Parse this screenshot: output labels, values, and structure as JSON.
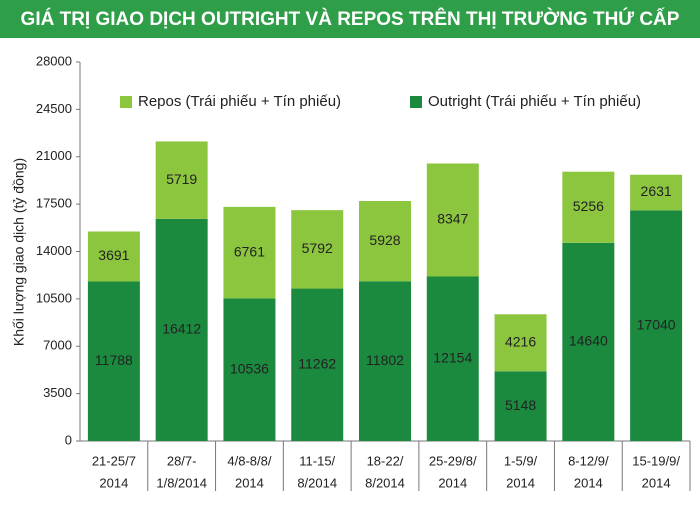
{
  "chart_data": {
    "type": "bar",
    "stacked": true,
    "title": "GIÁ TRỊ GIAO DỊCH OUTRIGHT VÀ REPOS TRÊN THỊ TRƯỜNG THỨ CẤP",
    "y_label": "Khối lượng giao dịch (tỷ đồng)",
    "categories": [
      [
        "21-25/7",
        "2014"
      ],
      [
        "28/7-",
        "1/8/2014"
      ],
      [
        "4/8-8/8/",
        "2014"
      ],
      [
        "11-15/",
        "8/2014"
      ],
      [
        "18-22/",
        "8/2014"
      ],
      [
        "25-29/8/",
        "2014"
      ],
      [
        "1-5/9/",
        "2014"
      ],
      [
        "8-12/9/",
        "2014"
      ],
      [
        "15-19/9/",
        "2014"
      ]
    ],
    "series": [
      {
        "name": "Outright (Trái phiếu + Tín phiếu)",
        "color": "#1b8a3f",
        "values": [
          11788,
          16412,
          10536,
          11262,
          11802,
          12154,
          5148,
          14640,
          17040
        ]
      },
      {
        "name": "Repos (Trái phiếu + Tín phiếu)",
        "color": "#8cc63f",
        "values": [
          3691,
          5719,
          6761,
          5792,
          5928,
          8347,
          4216,
          5256,
          2631
        ]
      }
    ],
    "ylim": [
      0,
      28000
    ],
    "yticks": [
      0,
      3500,
      7000,
      10500,
      14000,
      17500,
      21000,
      24500,
      28000
    ]
  }
}
